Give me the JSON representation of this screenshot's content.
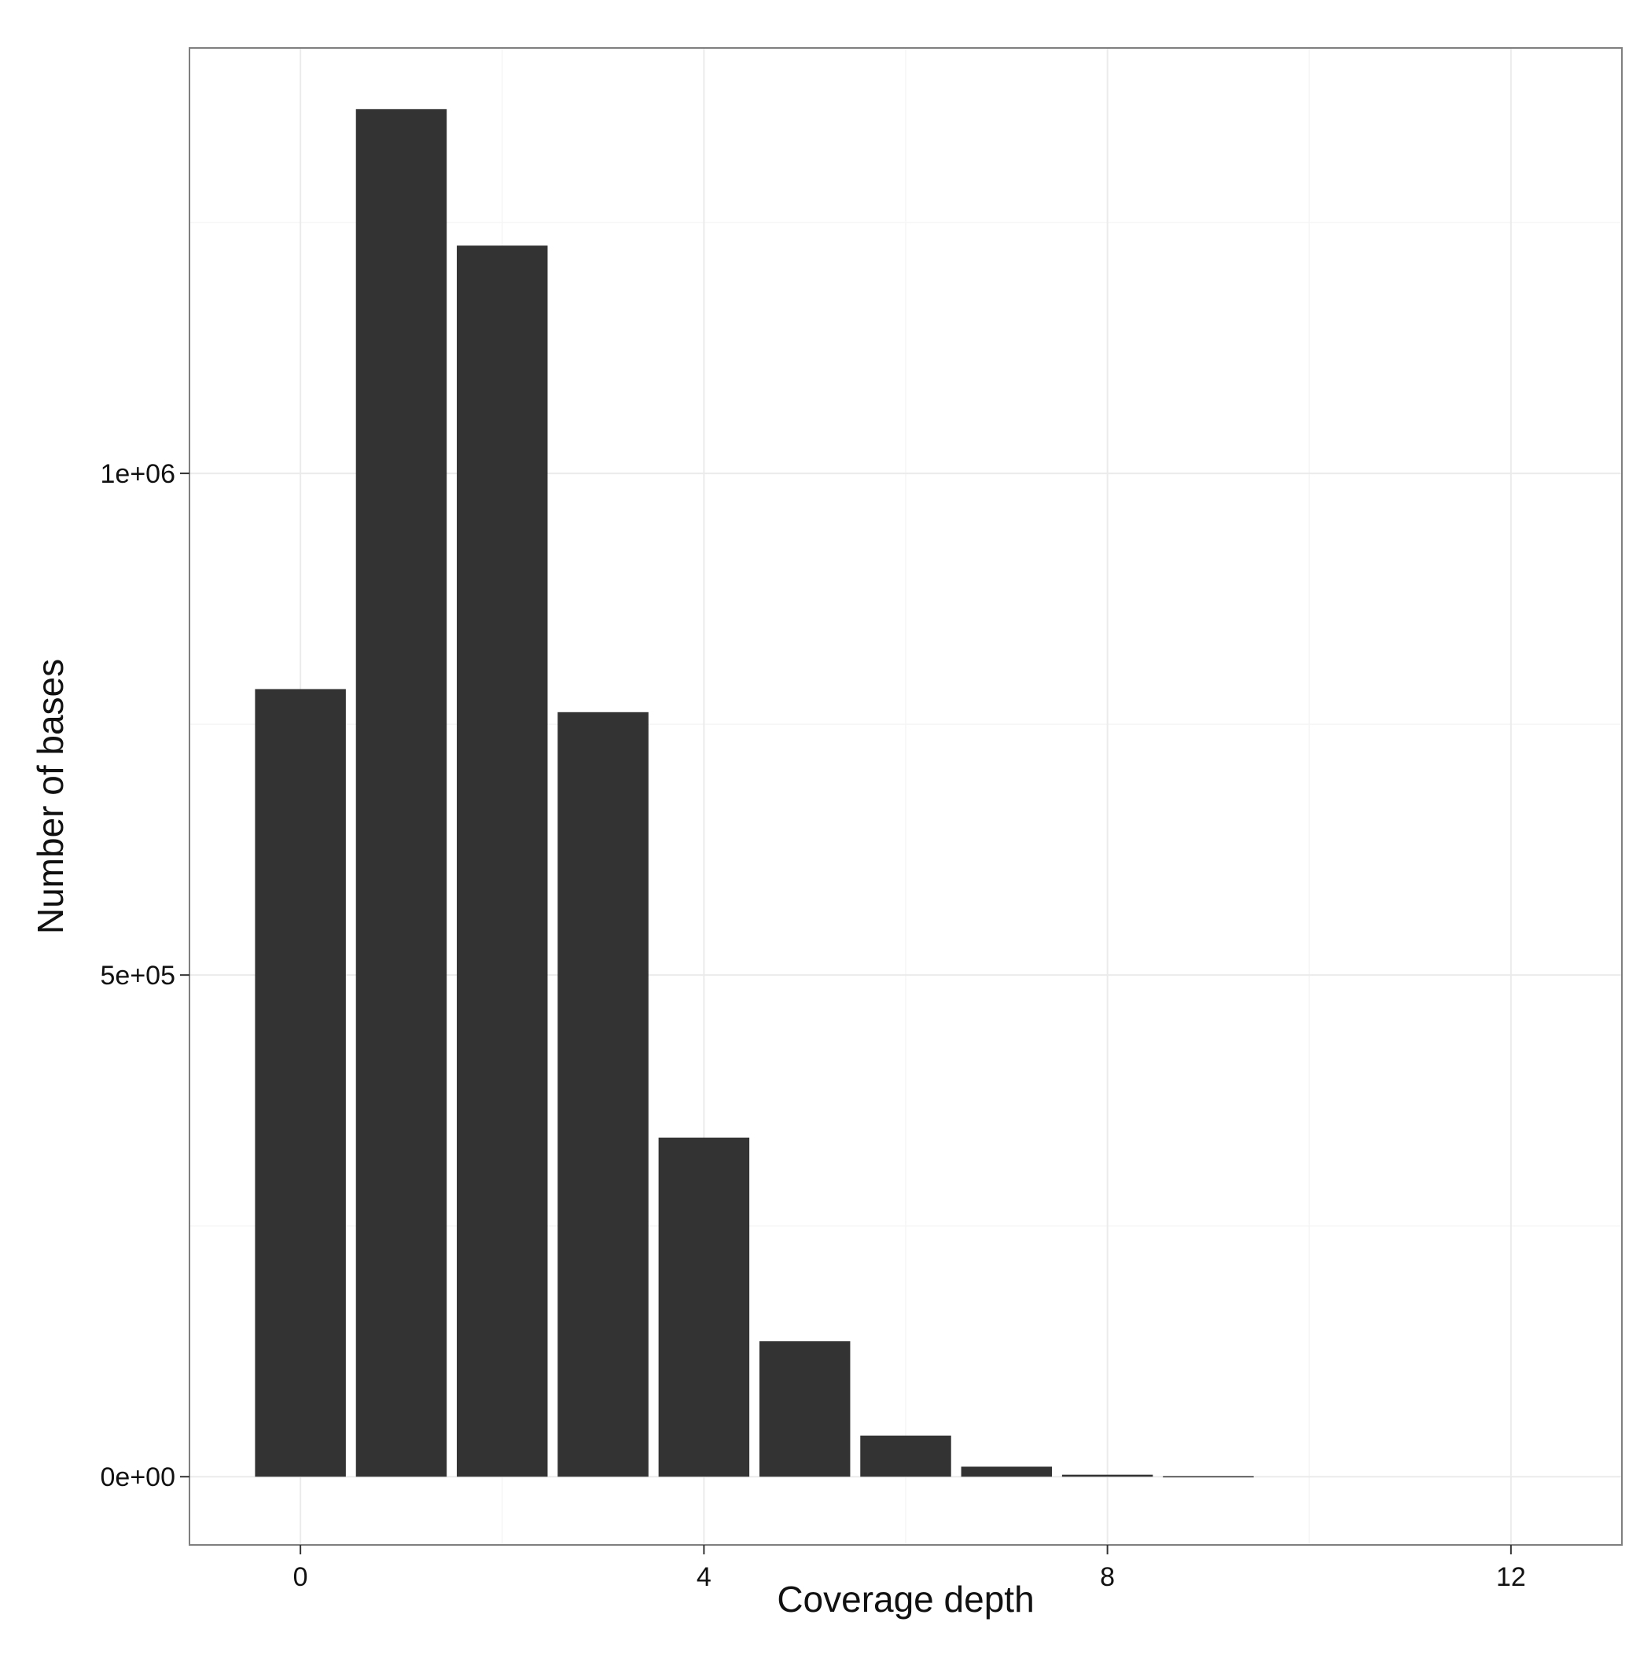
{
  "chart_data": {
    "type": "bar",
    "xlabel": "Coverage depth",
    "ylabel": "Number of bases",
    "x": [
      0,
      1,
      2,
      3,
      4,
      5,
      6,
      7,
      8,
      9,
      10,
      11,
      12
    ],
    "values": [
      785000,
      1363000,
      1227000,
      762000,
      338000,
      135000,
      41000,
      10000,
      2000,
      500,
      0,
      0,
      0
    ],
    "xlim": [
      -1.1,
      13.1
    ],
    "ylim": [
      -68000,
      1424000
    ],
    "xticks": [
      0,
      4,
      8,
      12
    ],
    "xtick_labels": [
      "0",
      "4",
      "8",
      "12"
    ],
    "yticks": [
      0,
      500000,
      1000000
    ],
    "ytick_labels": [
      "0e+00",
      "5e+05",
      "1e+06"
    ],
    "grid": true,
    "legend": "none",
    "colors": {
      "bar": "#333333",
      "panel_border": "#7f7f7f",
      "grid_major": "#ebebeb",
      "grid_minor": "#f5f5f5",
      "background": "#ffffff"
    }
  }
}
